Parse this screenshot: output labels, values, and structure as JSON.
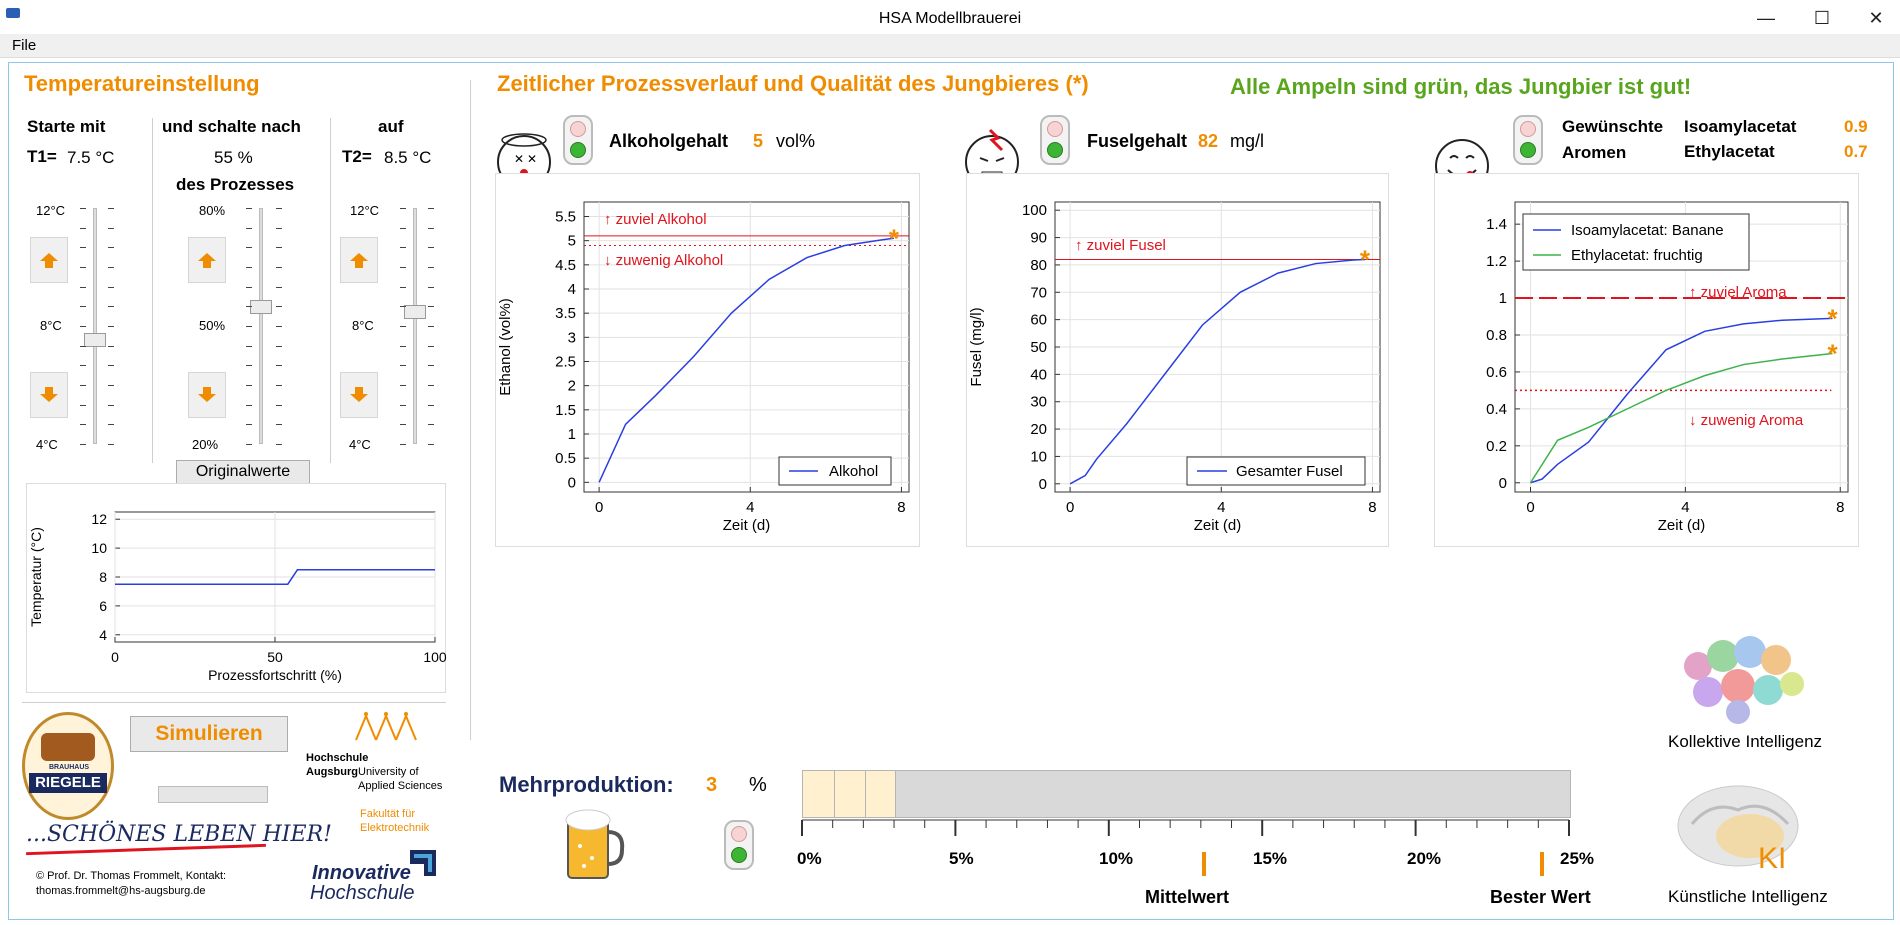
{
  "window": {
    "title": "HSA Modellbrauerei",
    "minimize": "—",
    "maximize": "☐",
    "close": "✕"
  },
  "menu": {
    "file": "File"
  },
  "temp": {
    "heading": "Temperatureinstellung",
    "start_with": "Starte mit",
    "switch_after": "und schalte nach",
    "to": "auf",
    "t1_label": "T1=",
    "t1_value": "7.5 °C",
    "switch_value": "55 %",
    "of_process": "des Prozesses",
    "t2_label": "T2=",
    "t2_value": "8.5 °C",
    "temp_ticks": [
      "12°C",
      "8°C",
      "4°C"
    ],
    "pct_ticks": [
      "80%",
      "50%",
      "20%"
    ],
    "t1_slider_level": 0.44,
    "switch_slider_level": 0.58,
    "t2_slider_level": 0.56,
    "reset_button": "Originalwerte"
  },
  "temp_chart": {
    "ylabel": "Temperatur (°C)",
    "xlabel": "Prozessfortschritt (%)",
    "yticks": [
      "12",
      "10",
      "8",
      "6",
      "4"
    ],
    "xticks": [
      "0",
      "50",
      "100"
    ]
  },
  "simulate": {
    "button": "Simulieren"
  },
  "credits": {
    "slogan": "...SCHÖNES LEBEN HIER!",
    "riegele": "RIEGELE",
    "brauhaus": "BRAUHAUS",
    "copyright_line1": "© Prof. Dr. Thomas Frommelt, Kontakt:",
    "copyright_line2": "thomas.frommelt@hs-augsburg.de",
    "hsa_line1": "Hochschule",
    "hsa_line2": "Augsburg",
    "hsa_line3": "University of",
    "hsa_line4": "Applied Sciences",
    "faculty_line1": "Fakultät für",
    "faculty_line2": "Elektrotechnik",
    "innovative1": "Innovative",
    "innovative2": "Hochschule"
  },
  "process": {
    "heading": "Zeitlicher Prozessverlauf und Qualität des Jungbieres (*)",
    "status": "Alle Ampeln sind grün, das Jungbier ist gut!"
  },
  "alcohol": {
    "label": "Alkoholgehalt",
    "value": "5",
    "unit": "vol%",
    "too_much": "↑ zuviel Alkohol",
    "too_little": "↓ zuwenig Alkohol",
    "legend": "Alkohol",
    "ylabel": "Ethanol (vol%)",
    "xlabel": "Zeit (d)",
    "yticks": [
      "5.5",
      "5",
      "4.5",
      "4",
      "3.5",
      "3",
      "2.5",
      "2",
      "1.5",
      "1",
      "0.5",
      "0"
    ],
    "xticks": [
      "0",
      "4",
      "8"
    ]
  },
  "fusel": {
    "label": "Fuselgehalt",
    "value": "82",
    "unit": "mg/l",
    "too_much": "↑ zuviel Fusel",
    "legend": "Gesamter Fusel",
    "ylabel": "Fusel (mg/l)",
    "xlabel": "Zeit (d)",
    "yticks": [
      "100",
      "90",
      "80",
      "70",
      "60",
      "50",
      "40",
      "30",
      "20",
      "10",
      "0"
    ],
    "xticks": [
      "0",
      "4",
      "8"
    ]
  },
  "aroma": {
    "label1": "Gewünschte",
    "label2": "Aromen",
    "iso_label": "Isoamylacetat",
    "iso_value": "0.9",
    "ethyl_label": "Ethylacetat",
    "ethyl_value": "0.7",
    "legend_iso": "Isoamylacetat: Banane",
    "legend_ethyl": "Ethylacetat: fruchtig",
    "too_much": "↑ zuviel Aroma",
    "too_little": "↓ zuwenig Aroma",
    "xlabel": "Zeit (d)",
    "yticks": [
      "1.4",
      "1.2",
      "1",
      "0.8",
      "0.6",
      "0.4",
      "0.2",
      "0"
    ],
    "xticks": [
      "0",
      "4",
      "8"
    ]
  },
  "production": {
    "label": "Mehrproduktion:",
    "value": "3",
    "unit": "%",
    "fill_fraction": 0.12,
    "ticks": [
      "0%",
      "5%",
      "10%",
      "15%",
      "20%",
      "25%"
    ],
    "mean_label": "Mittelwert",
    "best_label": "Bester Wert",
    "mean_percent": 13,
    "best_percent": 24
  },
  "ai": {
    "collective": "Kollektive Intelligenz",
    "artificial": "Künstliche Intelligenz",
    "ki": "KI"
  },
  "colors": {
    "accent_orange": "#f08c00",
    "status_green": "#5aa51e",
    "limit_red": "#e0141e",
    "curve_blue": "#2a3fe0",
    "curve_green": "#3cb34a",
    "navy": "#1b2a5e"
  },
  "chart_data": [
    {
      "type": "line",
      "title": "",
      "xlabel": "Prozessfortschritt (%)",
      "ylabel": "Temperatur (°C)",
      "xlim": [
        0,
        100
      ],
      "ylim": [
        3.5,
        12.5
      ],
      "series": [
        {
          "x": [
            0,
            54,
            57,
            100
          ],
          "values": [
            7.5,
            7.5,
            8.5,
            8.5
          ]
        }
      ]
    },
    {
      "type": "line",
      "xlabel": "Zeit (d)",
      "ylabel": "Ethanol (vol%)",
      "xlim": [
        -0.4,
        8.2
      ],
      "ylim": [
        -0.2,
        5.8
      ],
      "series": [
        {
          "name": "Alkohol",
          "x": [
            0,
            0.7,
            1.5,
            2.5,
            3.5,
            4.5,
            5.5,
            6.5,
            7.5,
            7.8
          ],
          "values": [
            0,
            1.2,
            1.8,
            2.6,
            3.5,
            4.2,
            4.65,
            4.9,
            5.02,
            5.05
          ]
        }
      ],
      "limits": [
        5.1,
        4.9
      ]
    },
    {
      "type": "line",
      "xlabel": "Zeit (d)",
      "ylabel": "Fusel (mg/l)",
      "xlim": [
        -0.4,
        8.2
      ],
      "ylim": [
        -3,
        103
      ],
      "series": [
        {
          "name": "Gesamter Fusel",
          "x": [
            0,
            0.4,
            0.7,
            1.5,
            2.5,
            3.5,
            4.5,
            5.5,
            6.5,
            7.5,
            7.8
          ],
          "values": [
            0,
            3,
            9,
            22,
            40,
            58,
            70,
            77,
            80.5,
            81.8,
            82
          ]
        }
      ],
      "limits": [
        82
      ]
    },
    {
      "type": "line",
      "xlabel": "Zeit (d)",
      "xlim": [
        -0.4,
        8.2
      ],
      "ylim": [
        -0.05,
        1.52
      ],
      "series": [
        {
          "name": "Isoamylacetat: Banane",
          "x": [
            0,
            0.3,
            0.7,
            1.5,
            2.5,
            3.5,
            4.5,
            5.5,
            6.5,
            7.8
          ],
          "values": [
            0,
            0.02,
            0.1,
            0.22,
            0.48,
            0.72,
            0.82,
            0.86,
            0.88,
            0.89
          ]
        },
        {
          "name": "Ethylacetat: fruchtig",
          "x": [
            0,
            0.7,
            1.5,
            2.5,
            3.5,
            4.5,
            5.5,
            6.5,
            7.8
          ],
          "values": [
            0,
            0.23,
            0.3,
            0.4,
            0.5,
            0.58,
            0.64,
            0.67,
            0.7
          ]
        }
      ],
      "limits": [
        1.0,
        0.5
      ]
    }
  ]
}
